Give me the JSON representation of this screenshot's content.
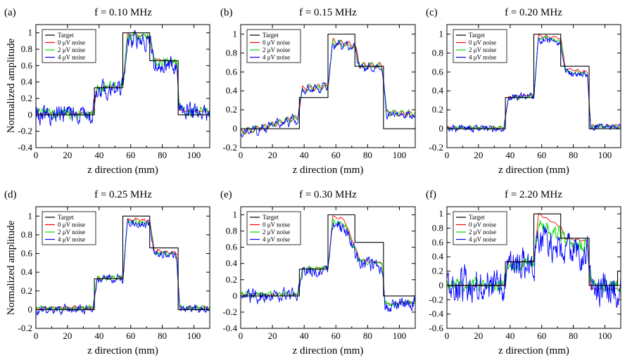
{
  "figure": {
    "ylabel": "Normalized amplitude"
  },
  "chart_data": [
    {
      "type": "line",
      "panel_label": "(a)",
      "title": "f = 0.10 MHz",
      "xlabel": "z direction (mm)",
      "xlim": [
        0,
        110
      ],
      "ylim": [
        -0.4,
        1.1
      ],
      "xticks": [
        0,
        20,
        40,
        60,
        80,
        100
      ],
      "yticks": [
        -0.4,
        -0.2,
        0,
        0.2,
        0.4,
        0.6,
        0.8,
        1
      ],
      "series": [
        {
          "name": "Target",
          "color": "#000000",
          "noise": 0,
          "x": [
            0,
            37,
            37,
            55,
            55,
            72,
            72,
            90,
            90,
            110
          ],
          "y": [
            0,
            0,
            0.33,
            0.33,
            1,
            1,
            0.66,
            0.66,
            0,
            0
          ]
        },
        {
          "name": "0 μV noise",
          "color": "#ff0000",
          "noise": 0,
          "x": [
            0,
            36,
            39,
            55,
            58,
            72,
            75,
            89,
            91,
            110
          ],
          "y": [
            0.02,
            0.02,
            0.33,
            0.36,
            0.98,
            0.96,
            0.68,
            0.64,
            0.05,
            0.05
          ]
        },
        {
          "name": "2 μV noise",
          "color": "#00dd00",
          "noise": 0.05,
          "x": [
            0,
            36,
            39,
            55,
            58,
            72,
            75,
            89,
            91,
            110
          ],
          "y": [
            0.02,
            0.02,
            0.33,
            0.36,
            0.96,
            0.93,
            0.66,
            0.62,
            0.04,
            0.04
          ]
        },
        {
          "name": "4 μV noise",
          "color": "#0000ff",
          "noise": 0.09,
          "x": [
            0,
            36,
            39,
            55,
            58,
            72,
            75,
            89,
            91,
            110
          ],
          "y": [
            0,
            0,
            0.3,
            0.35,
            0.92,
            0.88,
            0.62,
            0.6,
            0.03,
            0.03
          ]
        }
      ]
    },
    {
      "type": "line",
      "panel_label": "(b)",
      "title": "f = 0.15 MHz",
      "xlabel": "z direction (mm)",
      "xlim": [
        0,
        110
      ],
      "ylim": [
        -0.2,
        1.1
      ],
      "xticks": [
        0,
        20,
        40,
        60,
        80,
        100
      ],
      "yticks": [
        -0.2,
        0,
        0.2,
        0.4,
        0.6,
        0.8,
        1
      ],
      "series": [
        {
          "name": "Target",
          "color": "#000000",
          "noise": 0,
          "x": [
            0,
            37,
            37,
            55,
            55,
            72,
            72,
            90,
            90,
            110
          ],
          "y": [
            0,
            0,
            0.33,
            0.33,
            1,
            1,
            0.66,
            0.66,
            0,
            0
          ]
        },
        {
          "name": "0 μV noise",
          "color": "#ff0000",
          "noise": 0.005,
          "x": [
            0,
            10,
            36,
            39,
            55,
            58,
            72,
            75,
            89,
            92,
            110
          ],
          "y": [
            -0.04,
            0,
            0.12,
            0.42,
            0.45,
            0.92,
            0.88,
            0.67,
            0.67,
            0.17,
            0.15
          ]
        },
        {
          "name": "2 μV noise",
          "color": "#00dd00",
          "noise": 0.015,
          "x": [
            0,
            10,
            36,
            39,
            55,
            58,
            72,
            75,
            89,
            92,
            110
          ],
          "y": [
            -0.04,
            0,
            0.12,
            0.42,
            0.45,
            0.91,
            0.87,
            0.66,
            0.66,
            0.17,
            0.15
          ]
        },
        {
          "name": "4 μV noise",
          "color": "#0000ff",
          "noise": 0.03,
          "x": [
            0,
            10,
            36,
            39,
            55,
            58,
            72,
            75,
            89,
            92,
            110
          ],
          "y": [
            -0.05,
            -0.01,
            0.11,
            0.41,
            0.44,
            0.9,
            0.86,
            0.65,
            0.65,
            0.16,
            0.14
          ]
        }
      ]
    },
    {
      "type": "line",
      "panel_label": "(c)",
      "title": "f = 0.20 MHz",
      "xlabel": "z direction (mm)",
      "xlim": [
        0,
        110
      ],
      "ylim": [
        -0.2,
        1.1
      ],
      "xticks": [
        0,
        20,
        40,
        60,
        80,
        100
      ],
      "yticks": [
        -0.2,
        0,
        0.2,
        0.4,
        0.6,
        0.8,
        1
      ],
      "series": [
        {
          "name": "Target",
          "color": "#000000",
          "noise": 0,
          "x": [
            0,
            37,
            37,
            55,
            55,
            72,
            72,
            90,
            90,
            110
          ],
          "y": [
            0,
            0,
            0.33,
            0.33,
            1,
            1,
            0.66,
            0.66,
            0,
            0
          ]
        },
        {
          "name": "0 μV noise",
          "color": "#ff0000",
          "noise": 0.005,
          "x": [
            0,
            36,
            39,
            55,
            58,
            72,
            75,
            89,
            91,
            110
          ],
          "y": [
            0.01,
            0.01,
            0.33,
            0.36,
            0.98,
            0.96,
            0.63,
            0.6,
            0.03,
            0.03
          ]
        },
        {
          "name": "2 μV noise",
          "color": "#00dd00",
          "noise": 0.015,
          "x": [
            0,
            36,
            39,
            55,
            58,
            72,
            75,
            89,
            91,
            110
          ],
          "y": [
            0.01,
            0.01,
            0.33,
            0.35,
            0.96,
            0.93,
            0.61,
            0.58,
            0.02,
            0.02
          ]
        },
        {
          "name": "4 μV noise",
          "color": "#0000ff",
          "noise": 0.03,
          "x": [
            0,
            36,
            39,
            55,
            58,
            72,
            75,
            89,
            91,
            110
          ],
          "y": [
            0,
            0,
            0.32,
            0.35,
            0.94,
            0.9,
            0.6,
            0.56,
            0.02,
            0.02
          ]
        }
      ]
    },
    {
      "type": "line",
      "panel_label": "(d)",
      "title": "f = 0.25 MHz",
      "xlabel": "z direction (mm)",
      "xlim": [
        0,
        110
      ],
      "ylim": [
        -0.2,
        1.1
      ],
      "xticks": [
        0,
        20,
        40,
        60,
        80,
        100
      ],
      "yticks": [
        -0.2,
        0,
        0.2,
        0.4,
        0.6,
        0.8,
        1
      ],
      "series": [
        {
          "name": "Target",
          "color": "#000000",
          "noise": 0,
          "x": [
            0,
            37,
            37,
            55,
            55,
            72,
            72,
            90,
            90,
            110
          ],
          "y": [
            0,
            0,
            0.33,
            0.33,
            1,
            1,
            0.66,
            0.66,
            0,
            0
          ]
        },
        {
          "name": "0 μV noise",
          "color": "#ff0000",
          "noise": 0.01,
          "x": [
            0,
            36,
            39,
            55,
            58,
            72,
            75,
            89,
            91,
            110
          ],
          "y": [
            0.02,
            0.02,
            0.34,
            0.34,
            0.97,
            0.95,
            0.63,
            0.6,
            0.02,
            0.02
          ]
        },
        {
          "name": "2 μV noise",
          "color": "#00dd00",
          "noise": 0.02,
          "x": [
            0,
            36,
            39,
            55,
            58,
            72,
            75,
            89,
            91,
            110
          ],
          "y": [
            0.02,
            0.02,
            0.34,
            0.34,
            0.95,
            0.92,
            0.61,
            0.59,
            0.02,
            0.02
          ]
        },
        {
          "name": "4 μV noise",
          "color": "#0000ff",
          "noise": 0.035,
          "x": [
            0,
            36,
            39,
            55,
            58,
            72,
            75,
            89,
            91,
            110
          ],
          "y": [
            0,
            0,
            0.33,
            0.33,
            0.93,
            0.9,
            0.6,
            0.57,
            0.01,
            0.01
          ]
        }
      ]
    },
    {
      "type": "line",
      "panel_label": "(e)",
      "title": "f = 0.30 MHz",
      "xlabel": "z direction (mm)",
      "xlim": [
        0,
        110
      ],
      "ylim": [
        -0.4,
        1.1
      ],
      "xticks": [
        0,
        20,
        40,
        60,
        80,
        100
      ],
      "yticks": [
        -0.4,
        -0.2,
        0,
        0.2,
        0.4,
        0.6,
        0.8,
        1
      ],
      "series": [
        {
          "name": "Target",
          "color": "#000000",
          "noise": 0,
          "x": [
            0,
            37,
            37,
            55,
            55,
            72,
            72,
            90,
            90,
            110
          ],
          "y": [
            0,
            0,
            0.33,
            0.33,
            1,
            1,
            0.66,
            0.66,
            0,
            0
          ]
        },
        {
          "name": "0 μV noise",
          "color": "#ff0000",
          "noise": 0.005,
          "x": [
            0,
            36,
            39,
            55,
            58,
            65,
            75,
            89,
            91,
            110
          ],
          "y": [
            0.02,
            0.02,
            0.33,
            0.35,
            0.98,
            0.95,
            0.45,
            0.4,
            -0.1,
            -0.08
          ]
        },
        {
          "name": "2 μV noise",
          "color": "#00dd00",
          "noise": 0.025,
          "x": [
            0,
            36,
            39,
            55,
            58,
            65,
            75,
            89,
            91,
            110
          ],
          "y": [
            0.02,
            0.02,
            0.33,
            0.35,
            0.92,
            0.9,
            0.44,
            0.38,
            -0.1,
            -0.08
          ]
        },
        {
          "name": "4 μV noise",
          "color": "#0000ff",
          "noise": 0.07,
          "x": [
            0,
            36,
            39,
            55,
            58,
            65,
            75,
            89,
            91,
            110
          ],
          "y": [
            0,
            0,
            0.3,
            0.33,
            0.86,
            0.85,
            0.42,
            0.36,
            -0.12,
            -0.1
          ]
        }
      ]
    },
    {
      "type": "line",
      "panel_label": "(f)",
      "title": "f = 2.20 MHz",
      "xlabel": "z direction (mm)",
      "xlim": [
        0,
        110
      ],
      "ylim": [
        -0.6,
        1.1
      ],
      "xticks": [
        0,
        20,
        40,
        60,
        80,
        100
      ],
      "yticks": [
        -0.6,
        -0.4,
        -0.2,
        0,
        0.2,
        0.4,
        0.6,
        0.8,
        1
      ],
      "series": [
        {
          "name": "Target",
          "color": "#000000",
          "noise": 0,
          "x": [
            0,
            37,
            37,
            55,
            55,
            72,
            72,
            90,
            90,
            108,
            108,
            110
          ],
          "y": [
            0,
            0,
            0.33,
            0.33,
            1,
            1,
            0.66,
            0.66,
            0,
            0,
            0.2,
            0.2
          ]
        },
        {
          "name": "0 μV noise",
          "color": "#ff0000",
          "noise": 0,
          "x": [
            0,
            36,
            39,
            55,
            58,
            72,
            75,
            89,
            91,
            110
          ],
          "y": [
            0,
            0,
            0.33,
            0.34,
            1,
            0.82,
            0.66,
            0.62,
            -0.05,
            -0.05
          ]
        },
        {
          "name": "2 μV noise",
          "color": "#00dd00",
          "noise": 0.08,
          "x": [
            0,
            36,
            39,
            55,
            58,
            72,
            75,
            89,
            91,
            110
          ],
          "y": [
            0,
            0,
            0.3,
            0.33,
            0.85,
            0.7,
            0.6,
            0.55,
            0,
            0
          ]
        },
        {
          "name": "4 μV noise",
          "color": "#0000ff",
          "noise": 0.2,
          "x": [
            0,
            36,
            39,
            55,
            58,
            72,
            75,
            89,
            91,
            110
          ],
          "y": [
            0,
            0,
            0.25,
            0.3,
            0.6,
            0.55,
            0.45,
            0.4,
            -0.05,
            -0.05
          ]
        }
      ]
    }
  ]
}
